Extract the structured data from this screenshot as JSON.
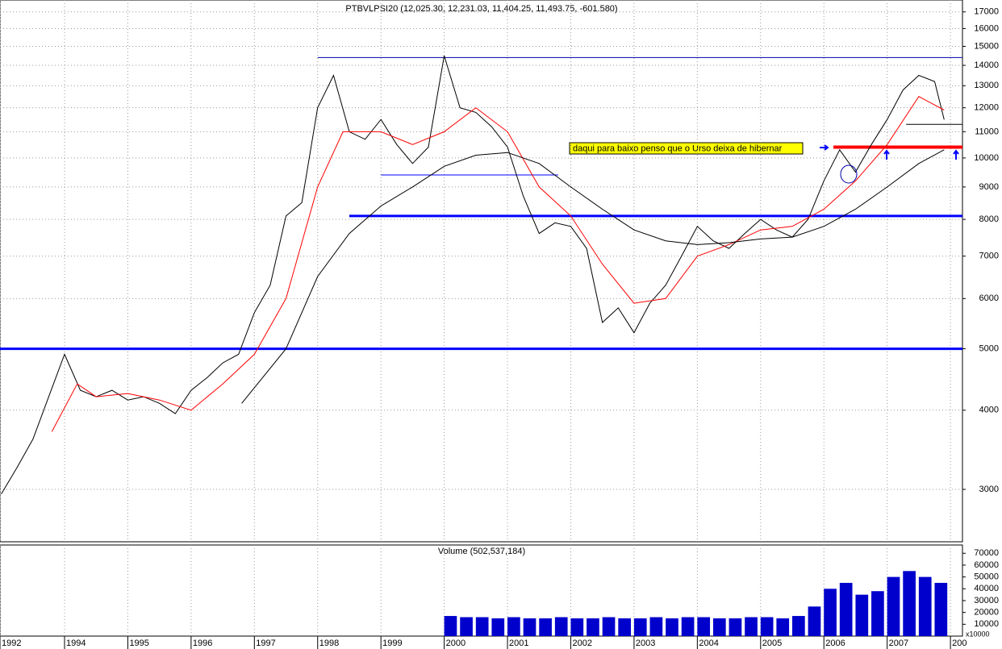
{
  "chart_data": [
    {
      "type": "line",
      "title": "PTBVLPSI20 (12,025.30, 12,231.03, 11,404.25, 11,493.75, -601.580)",
      "log_scale": true,
      "grid": true,
      "xlim": [
        1992.98,
        2008.19
      ],
      "ylim": [
        2480,
        17750
      ],
      "xticks": [
        {
          "value": 1992.98,
          "label": "1992"
        },
        1994,
        1995,
        1996,
        1997,
        1998,
        1999,
        2000,
        2001,
        2002,
        2003,
        2004,
        2005,
        2006,
        2007,
        {
          "value": 2008,
          "label": "200"
        }
      ],
      "yticks": [
        3000,
        4000,
        5000,
        6000,
        7000,
        8000,
        9000,
        10000,
        11000,
        12000,
        13000,
        14000,
        15000,
        16000,
        17000
      ],
      "series": [
        {
          "color": "#000000",
          "x": [
            1993.0,
            1993.25,
            1993.5,
            1993.75,
            1994.0,
            1994.25,
            1994.5,
            1994.75,
            1995.0,
            1995.25,
            1995.5,
            1995.75,
            1996.0,
            1996.25,
            1996.5,
            1996.75,
            1997.0,
            1997.25,
            1997.5,
            1997.75,
            1998.0,
            1998.25,
            1998.5,
            1998.75,
            1999.0,
            1999.25,
            1999.5,
            1999.75,
            2000.0,
            2000.25,
            2000.5,
            2000.75,
            2001.0,
            2001.25,
            2001.5,
            2001.75,
            2002.0,
            2002.25,
            2002.5,
            2002.75,
            2003.0,
            2003.25,
            2003.5,
            2003.75,
            2004.0,
            2004.25,
            2004.5,
            2004.75,
            2005.0,
            2005.25,
            2005.5,
            2005.75,
            2006.0,
            2006.25,
            2006.5,
            2006.75,
            2007.0,
            2007.25,
            2007.5,
            2007.75,
            2007.9
          ],
          "values": [
            2950,
            3250,
            3600,
            4200,
            4900,
            4300,
            4200,
            4300,
            4150,
            4200,
            4100,
            3950,
            4300,
            4500,
            4750,
            4900,
            5700,
            6300,
            8100,
            8500,
            12000,
            13500,
            11000,
            10700,
            11500,
            10500,
            9800,
            10400,
            14500,
            12000,
            11800,
            11200,
            10400,
            8700,
            7600,
            7900,
            7800,
            7200,
            5500,
            5800,
            5300,
            5900,
            6300,
            7000,
            7800,
            7400,
            7200,
            7600,
            8000,
            7700,
            7500,
            8000,
            9200,
            10300,
            9500,
            10500,
            11500,
            12800,
            13500,
            13200,
            11493.75
          ]
        },
        {
          "color": "#ff0000",
          "x": [
            1993.8,
            1994.2,
            1994.5,
            1995.0,
            1995.5,
            1996.0,
            1996.5,
            1997.0,
            1997.5,
            1998.0,
            1998.4,
            1999.0,
            1999.5,
            2000.0,
            2000.5,
            2001.0,
            2001.5,
            2002.0,
            2002.5,
            2003.0,
            2003.5,
            2004.0,
            2004.5,
            2005.0,
            2005.5,
            2006.0,
            2006.5,
            2007.0,
            2007.5,
            2007.9
          ],
          "values": [
            3700,
            4400,
            4200,
            4250,
            4150,
            4000,
            4400,
            4900,
            6000,
            9000,
            11000,
            11000,
            10500,
            11000,
            12000,
            11000,
            9000,
            8100,
            6800,
            5900,
            6000,
            7000,
            7300,
            7700,
            7800,
            8300,
            9200,
            10500,
            12500,
            11900
          ]
        },
        {
          "color": "#000000",
          "x": [
            1996.8,
            1997.5,
            1998.0,
            1998.5,
            1999.0,
            1999.5,
            2000.0,
            2000.5,
            2001.0,
            2001.5,
            2002.0,
            2002.5,
            2003.0,
            2003.5,
            2004.0,
            2004.5,
            2005.0,
            2005.5,
            2006.0,
            2006.5,
            2007.0,
            2007.5,
            2007.9
          ],
          "values": [
            4100,
            5000,
            6500,
            7600,
            8400,
            9000,
            9700,
            10100,
            10200,
            9800,
            9000,
            8300,
            7700,
            7400,
            7300,
            7350,
            7450,
            7500,
            7800,
            8300,
            9000,
            9800,
            10300
          ]
        }
      ],
      "levels": [
        {
          "value": 14400,
          "from": 1998.0,
          "to": 2008.19,
          "color": "#0000aa",
          "width": 1
        },
        {
          "value": 9400,
          "from": 1999.0,
          "to": 2001.8,
          "color": "#0000ff",
          "width": 1
        },
        {
          "value": 8100,
          "from": 1998.5,
          "to": 2008.19,
          "color": "#0000ff",
          "width": 3
        },
        {
          "value": 5000,
          "from": 1992.98,
          "to": 2008.19,
          "color": "#0000ff",
          "width": 3
        },
        {
          "value": 10400,
          "from": 2006.15,
          "to": 2008.19,
          "color": "#ff0000",
          "width": 4
        },
        {
          "value": 11300,
          "from": 2007.3,
          "to": 2008.19,
          "color": "#000000",
          "width": 1
        }
      ],
      "annotation": "daqui para baixo penso que o Urso deixa de hibernar"
    },
    {
      "type": "bar",
      "title": "Volume (502,537,184)",
      "color": "#0000cc",
      "y_unit_label": "x10000",
      "ylim": [
        0,
        77000
      ],
      "yticks": [
        10000,
        20000,
        30000,
        40000,
        50000,
        60000,
        70000
      ],
      "x": [
        2000.0,
        2000.25,
        2000.5,
        2000.75,
        2001.0,
        2001.25,
        2001.5,
        2001.75,
        2002.0,
        2002.25,
        2002.5,
        2002.75,
        2003.0,
        2003.25,
        2003.5,
        2003.75,
        2004.0,
        2004.25,
        2004.5,
        2004.75,
        2005.0,
        2005.25,
        2005.5,
        2005.75,
        2006.0,
        2006.25,
        2006.5,
        2006.75,
        2007.0,
        2007.25,
        2007.5,
        2007.75
      ],
      "values": [
        17000,
        16000,
        16000,
        15000,
        16000,
        15000,
        15000,
        16000,
        15000,
        15000,
        16000,
        15000,
        15000,
        16000,
        15000,
        16000,
        16000,
        15000,
        15000,
        16000,
        16000,
        15000,
        17000,
        25000,
        40000,
        45000,
        35000,
        38000,
        50000,
        55000,
        50000,
        45000
      ]
    }
  ]
}
